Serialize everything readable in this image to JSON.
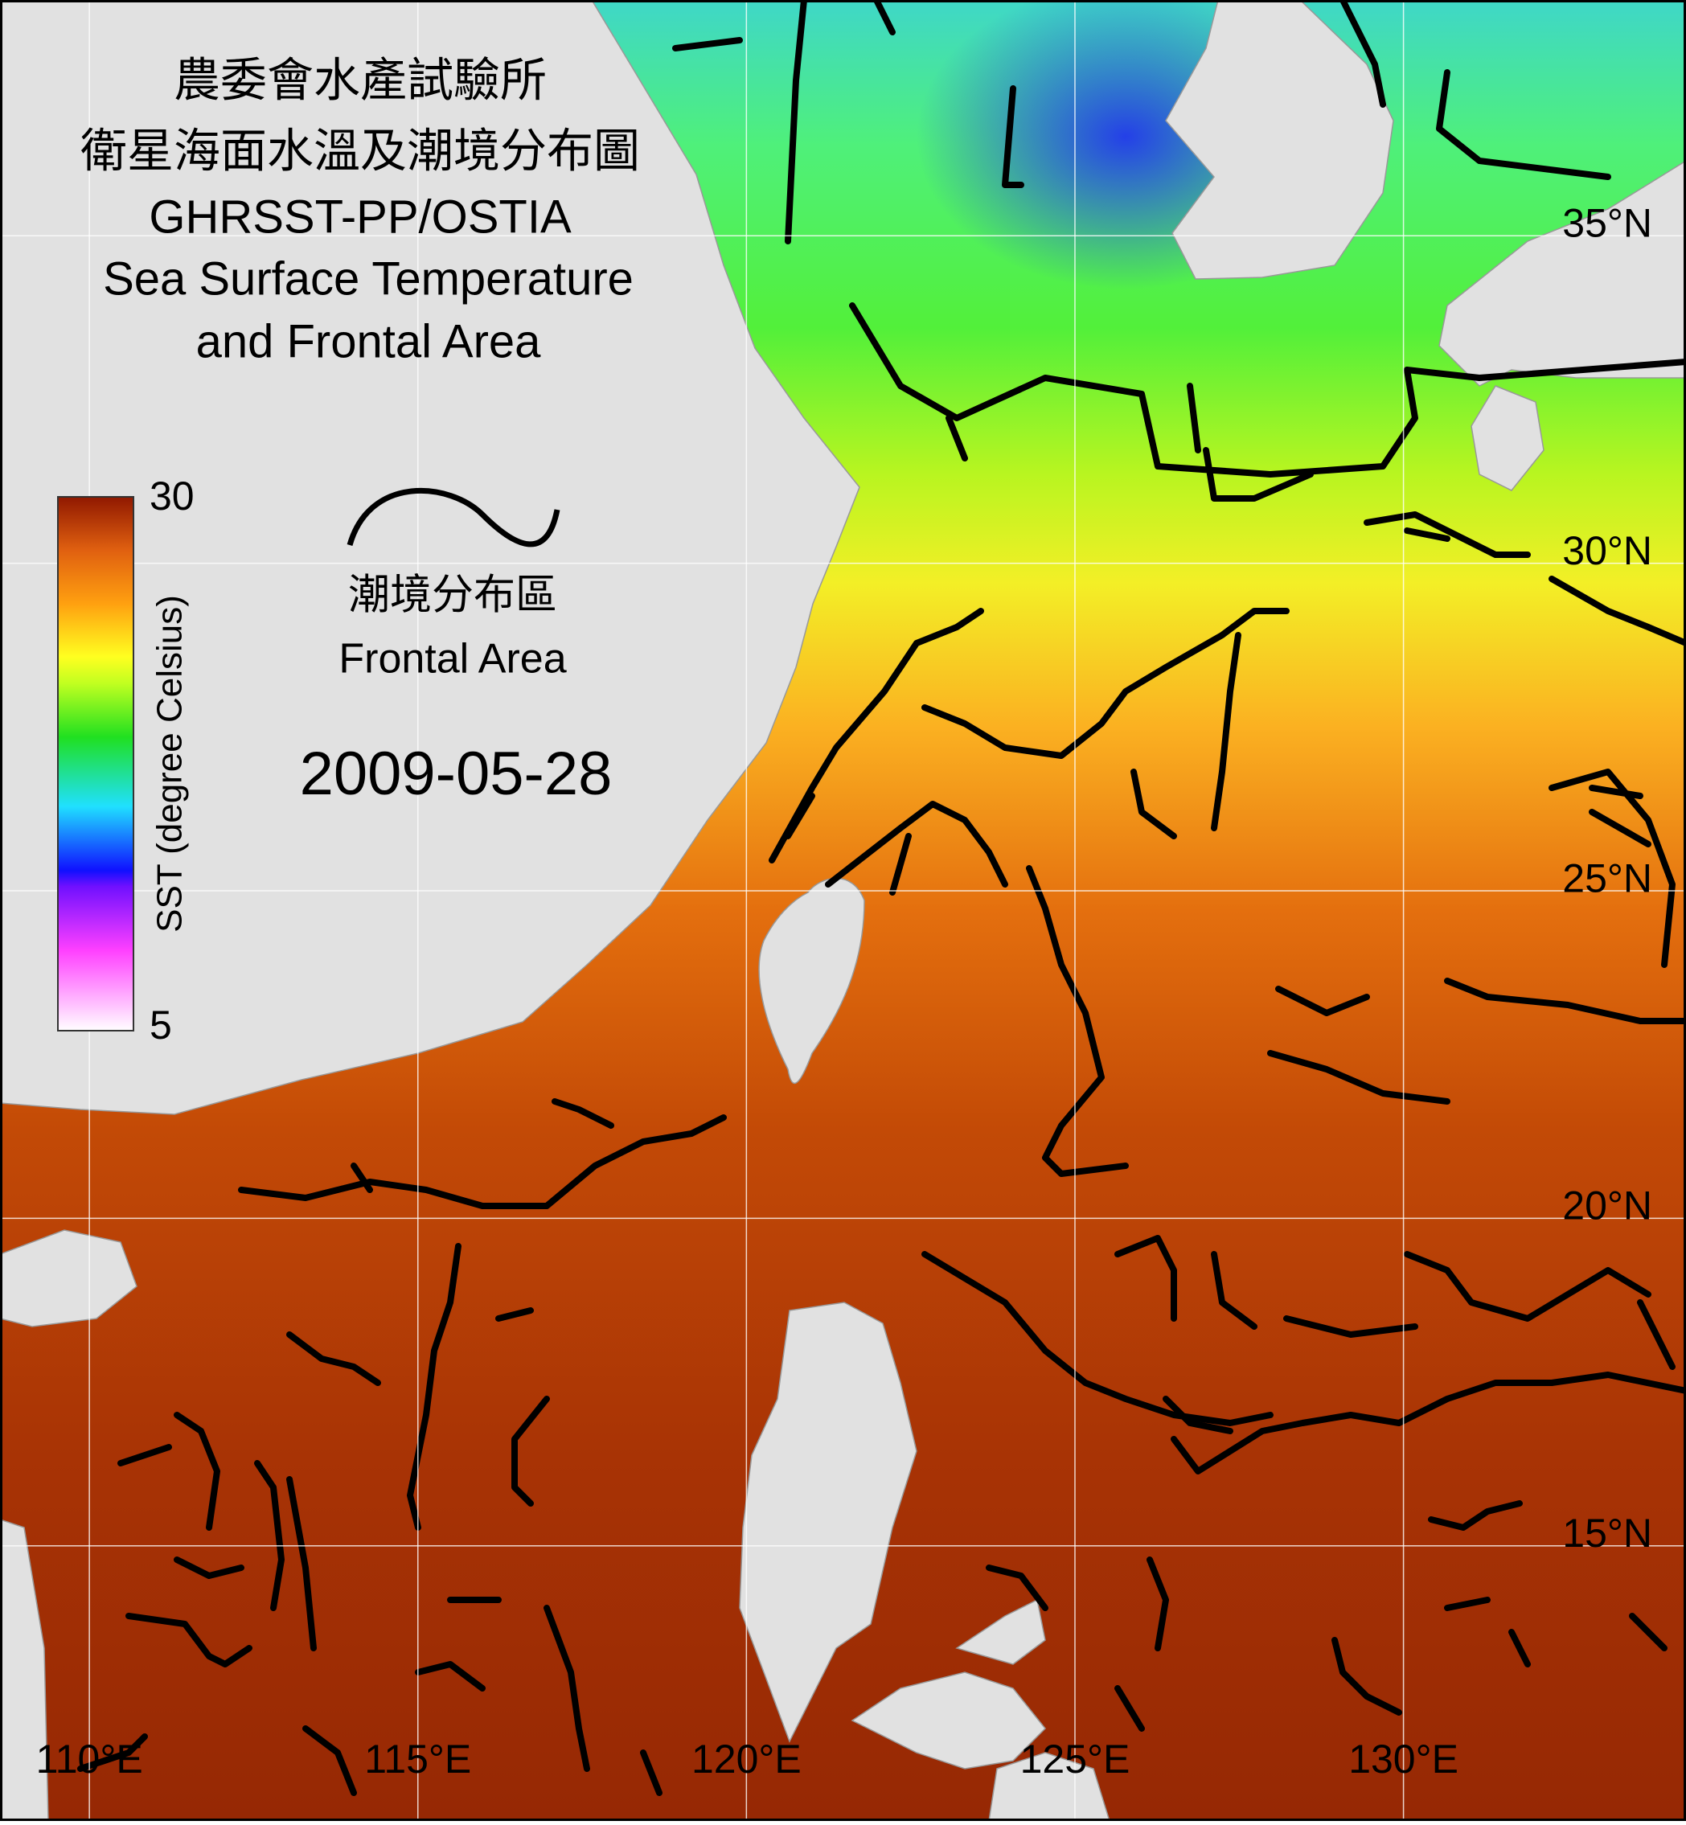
{
  "header": {
    "title_zh": [
      "農委會水產試驗所",
      "衛星海面水溫及潮境分布圖"
    ],
    "title_en": [
      "GHRSST-PP/OSTIA",
      "Sea Surface Temperature",
      "and Frontal Area"
    ]
  },
  "colorbar": {
    "label": "SST (degree Celsius)",
    "lim": [
      5,
      30
    ],
    "ticks": [
      5,
      30
    ]
  },
  "legend": {
    "label_zh": "潮境分布區",
    "label_en": "Frontal Area"
  },
  "date": "2009-05-28",
  "map": {
    "xlim": [
      108.64,
      134.3
    ],
    "ylim": [
      10.8,
      38.6
    ],
    "xticks": [
      {
        "value": 110,
        "label": "110°E"
      },
      {
        "value": 115,
        "label": "115°E"
      },
      {
        "value": 120,
        "label": "120°E"
      },
      {
        "value": 125,
        "label": "125°E"
      },
      {
        "value": 130,
        "label": "130°E"
      }
    ],
    "yticks": [
      {
        "value": 35,
        "label": "35°N"
      },
      {
        "value": 30,
        "label": "30°N"
      },
      {
        "value": 25,
        "label": "25°N"
      },
      {
        "value": 20,
        "label": "20°N"
      },
      {
        "value": 15,
        "label": "15°N"
      }
    ]
  }
}
